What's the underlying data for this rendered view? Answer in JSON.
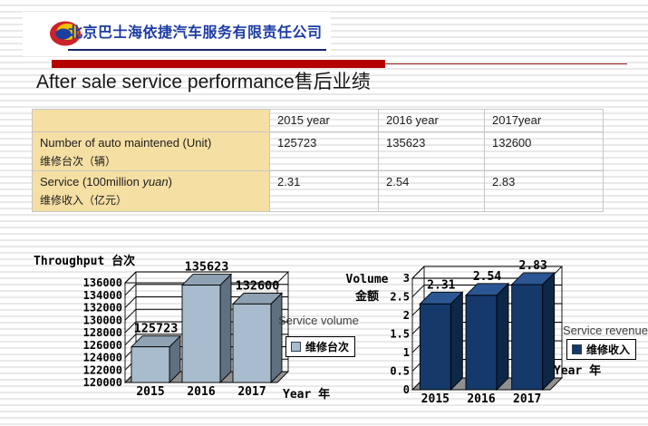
{
  "slide": {
    "header": {
      "company_name": "北京巴士海依捷汽车服务有限责任公司",
      "logo": "red-yellow-blue-oval-logo"
    },
    "title_en": "After sale service performance",
    "title_zh": "售后业绩",
    "accent_color": "#b40000"
  },
  "table": {
    "columns": [
      "",
      "2015 year",
      "2016 year",
      "2017year"
    ],
    "label_bg": "#f6dfa3",
    "rows": [
      {
        "label_en": "Number of auto maintened (Unit)",
        "label_zh": "维修台次（辆）",
        "values": [
          "125723",
          "135623",
          "132600"
        ]
      },
      {
        "label_en_prefix": "Service (100million ",
        "label_en_italic": "yuan",
        "label_en_suffix": ")",
        "label_zh": "维修收入（亿元）",
        "values": [
          "2.31",
          "2.54",
          "2.83"
        ]
      }
    ]
  },
  "chart_data": [
    {
      "type": "bar",
      "style": "3d-column",
      "title": "Throughput 台次",
      "categories": [
        "2015",
        "2016",
        "2017"
      ],
      "values": [
        125723,
        135623,
        132600
      ],
      "data_labels": [
        "125723",
        "135623",
        "132600"
      ],
      "ylim": [
        120000,
        136000
      ],
      "ytick_step": 2000,
      "ytick_labels": [
        "120000",
        "122000",
        "124000",
        "126000",
        "128000",
        "130000",
        "132000",
        "134000",
        "136000"
      ],
      "xlabel": "Year 年",
      "annotation": "Service volume",
      "legend": [
        "维修台次"
      ],
      "legend_position": "right",
      "grid": true,
      "bar_front_color": "#a9bcce",
      "bar_top_color": "#8fa2b3",
      "bar_side_color": "#5f7080",
      "floor_color": "#909090"
    },
    {
      "type": "bar",
      "style": "3d-column",
      "ylabel": "Volume 金额",
      "ylabel_lines": [
        "Volume",
        "金额"
      ],
      "categories": [
        "2015",
        "2016",
        "2017"
      ],
      "values": [
        2.31,
        2.54,
        2.83
      ],
      "data_labels": [
        "2.31",
        "2.54",
        "2.83"
      ],
      "ylim": [
        0,
        3
      ],
      "ytick_step": 0.5,
      "ytick_labels": [
        "0",
        "0.5",
        "1",
        "1.5",
        "2",
        "2.5",
        "3"
      ],
      "xlabel": "Year 年",
      "annotation": "Service revenue",
      "legend": [
        "维修收入"
      ],
      "legend_position": "right",
      "grid": true,
      "bar_front_color": "#16396b",
      "bar_top_color": "#2b5693",
      "bar_side_color": "#0d2747",
      "floor_color": "#909090"
    }
  ]
}
